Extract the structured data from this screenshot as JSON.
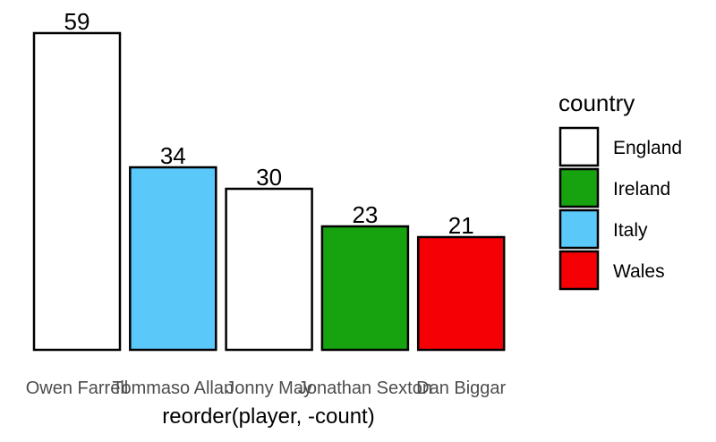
{
  "chart_data": {
    "type": "bar",
    "categories": [
      "Owen Farrell",
      "Tommaso Allan",
      "Jonny May",
      "Jonathan Sexton",
      "Dan Biggar"
    ],
    "values": [
      59,
      34,
      30,
      23,
      21
    ],
    "bar_country": [
      "England",
      "Italy",
      "England",
      "Ireland",
      "Wales"
    ],
    "data_labels": [
      "59",
      "34",
      "30",
      "23",
      "21"
    ],
    "xlabel": "reorder(player, -count)",
    "ylabel": "",
    "ylim": [
      0,
      62
    ],
    "grid": false,
    "legend": {
      "title": "country",
      "placement": "right",
      "entries": [
        {
          "name": "England",
          "color": "#ffffff"
        },
        {
          "name": "Ireland",
          "color": "#17a30f"
        },
        {
          "name": "Italy",
          "color": "#5bc8fa"
        },
        {
          "name": "Wales",
          "color": "#f50004"
        }
      ]
    }
  }
}
